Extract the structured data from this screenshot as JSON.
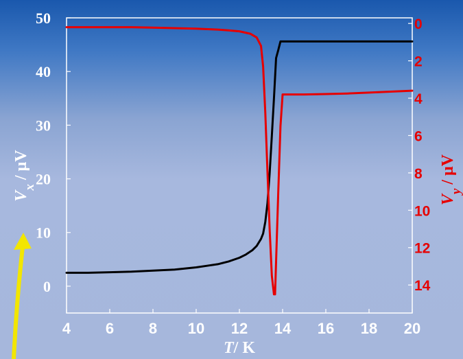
{
  "chart_data": {
    "type": "line",
    "xlabel": {
      "var": "T",
      "unit": "/ K"
    },
    "ylabel_left": {
      "var": "V",
      "sub": "x",
      "unit": "/ μV"
    },
    "ylabel_right": {
      "var": "V",
      "sub": "y",
      "unit": "/ μV"
    },
    "xlim": [
      4,
      20
    ],
    "ylim_left": [
      -5,
      50
    ],
    "ylim_right": [
      -0.3,
      15.5
    ],
    "right_axis_inverted": true,
    "x_ticks": [
      "4",
      "6",
      "8",
      "10",
      "12",
      "14",
      "16",
      "18",
      "20"
    ],
    "y_ticks_left": [
      "0",
      "10",
      "20",
      "30",
      "40",
      "50"
    ],
    "y_ticks_right": [
      "0",
      "2",
      "4",
      "6",
      "8",
      "10",
      "12",
      "14"
    ],
    "grid": false,
    "series": [
      {
        "axis": "left",
        "color": "#000000",
        "x": [
          4.0,
          5,
          6,
          7,
          8,
          9,
          10,
          10.5,
          11,
          11.5,
          12,
          12.3,
          12.6,
          12.8,
          13.0,
          13.1,
          13.2,
          13.3,
          13.4,
          13.5,
          13.6,
          13.7,
          13.8,
          13.9,
          14.0,
          15,
          16,
          17,
          18,
          19,
          20
        ],
        "y": [
          2.5,
          2.5,
          2.6,
          2.7,
          2.9,
          3.1,
          3.5,
          3.8,
          4.1,
          4.6,
          5.3,
          5.9,
          6.7,
          7.5,
          8.8,
          9.8,
          12.0,
          15.5,
          21.0,
          28.0,
          35.0,
          42.5,
          44.0,
          45.6,
          45.6,
          45.6,
          45.6,
          45.6,
          45.6,
          45.6,
          45.6
        ]
      },
      {
        "axis": "right",
        "color": "#e60000",
        "x": [
          4.0,
          5,
          6,
          7,
          8,
          9,
          10,
          11,
          11.5,
          12,
          12.5,
          12.8,
          13.0,
          13.1,
          13.2,
          13.3,
          13.4,
          13.5,
          13.6,
          13.65,
          13.8,
          13.9,
          14.0,
          14.1,
          15,
          16,
          17,
          18,
          19,
          20
        ],
        "y": [
          0.2,
          0.2,
          0.2,
          0.2,
          0.22,
          0.25,
          0.28,
          0.33,
          0.37,
          0.42,
          0.55,
          0.75,
          1.2,
          2.3,
          4.8,
          8.0,
          11.0,
          13.5,
          14.5,
          14.5,
          9.0,
          5.5,
          3.8,
          3.8,
          3.8,
          3.78,
          3.75,
          3.7,
          3.65,
          3.6
        ]
      }
    ]
  }
}
